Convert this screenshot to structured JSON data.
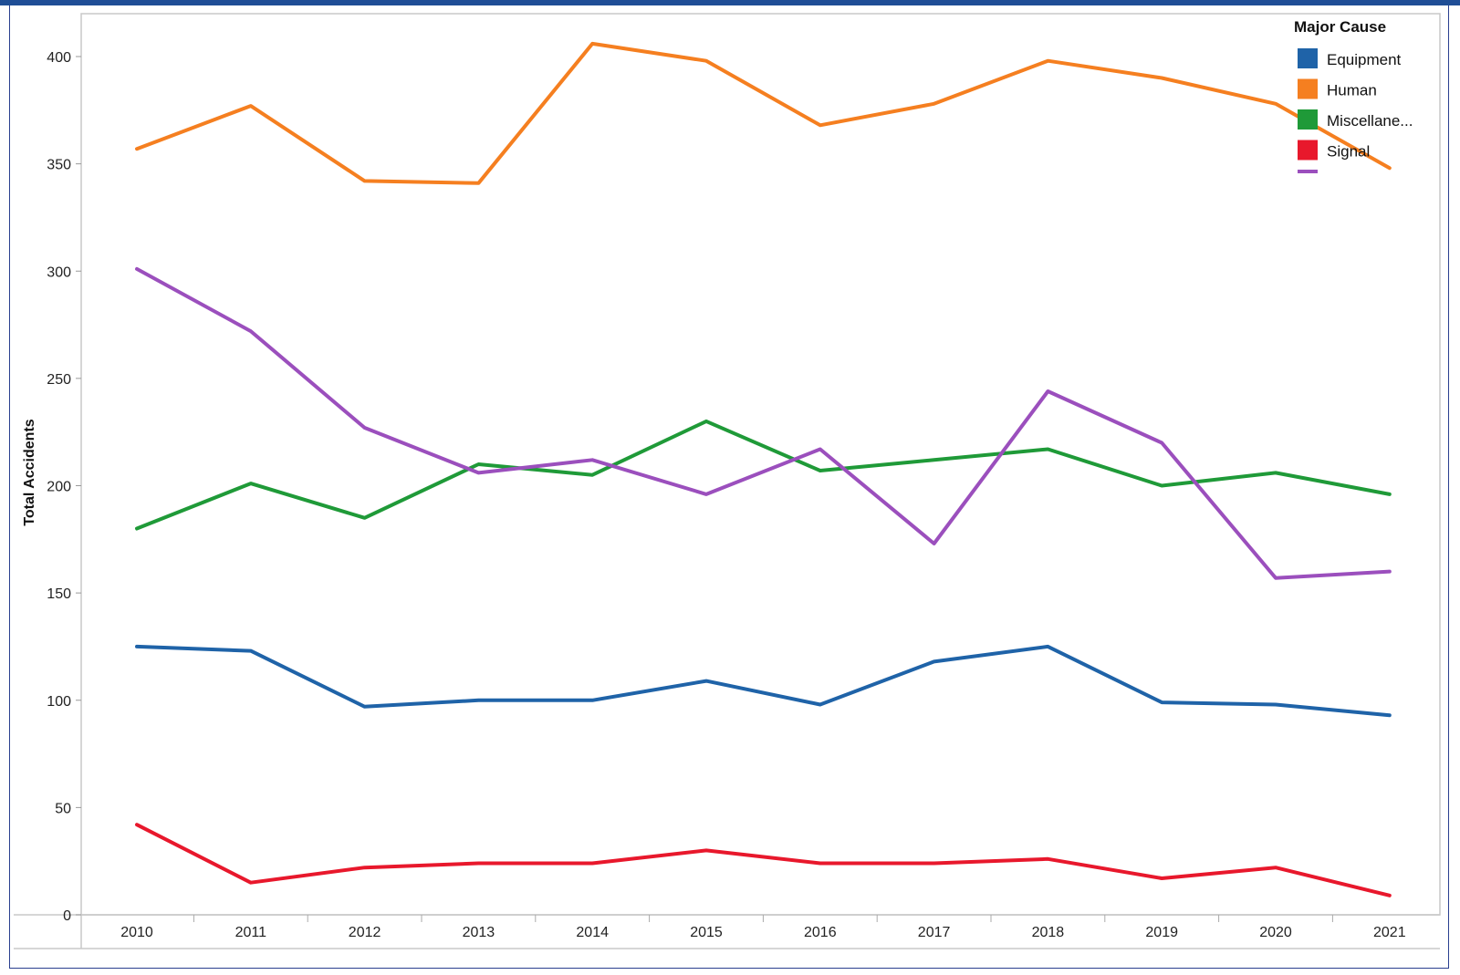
{
  "chart_data": {
    "type": "line",
    "title": "",
    "xlabel": "",
    "ylabel": "Total Accidents",
    "categories": [
      "2010",
      "2011",
      "2012",
      "2013",
      "2014",
      "2015",
      "2016",
      "2017",
      "2018",
      "2019",
      "2020",
      "2021"
    ],
    "ylim": [
      0,
      425
    ],
    "yticks": [
      0,
      50,
      100,
      150,
      200,
      250,
      300,
      350,
      400
    ],
    "grid": false,
    "legend": {
      "title": "Major Cause",
      "placement": "top-right",
      "entries": [
        "Equipment",
        "Human",
        "Miscellane...",
        "Signal"
      ]
    },
    "series": [
      {
        "name": "Equipment",
        "color": "#1f63a8",
        "values": [
          125,
          123,
          97,
          100,
          100,
          109,
          98,
          118,
          125,
          99,
          98,
          93
        ]
      },
      {
        "name": "Human",
        "color": "#f57f20",
        "values": [
          357,
          377,
          342,
          341,
          406,
          398,
          368,
          378,
          398,
          390,
          378,
          348
        ]
      },
      {
        "name": "Miscellane...",
        "color": "#1f9a38",
        "values": [
          180,
          201,
          185,
          210,
          205,
          230,
          207,
          212,
          217,
          200,
          206,
          196
        ]
      },
      {
        "name": "Signal",
        "color": "#e8182c",
        "values": [
          42,
          15,
          22,
          24,
          24,
          30,
          24,
          24,
          26,
          17,
          22,
          9
        ]
      },
      {
        "color": "#9b4fbd",
        "values": [
          301,
          272,
          227,
          206,
          212,
          196,
          217,
          173,
          244,
          220,
          157,
          160
        ]
      }
    ]
  }
}
